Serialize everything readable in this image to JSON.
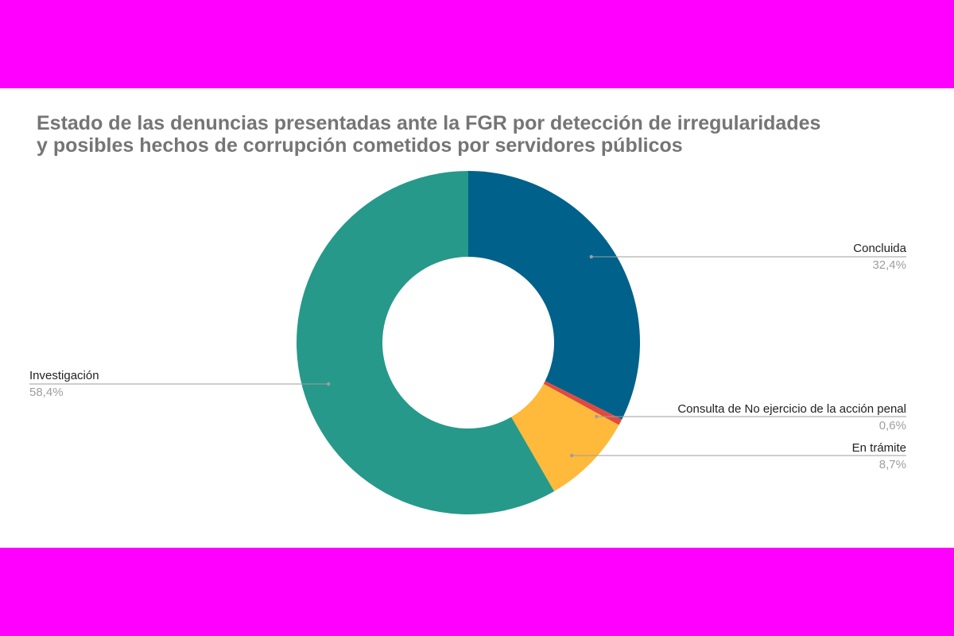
{
  "chart_data": {
    "type": "pie",
    "donut": true,
    "title_lines": [
      "Estado de las denuncias presentadas ante la FGR por detección de irregularidades",
      "y posibles hechos de corrupción cometidos por servidores públicos"
    ],
    "slices": [
      {
        "label": "Concluida",
        "value": 32.4,
        "value_label": "32,4%",
        "color": "#00618b"
      },
      {
        "label": "Consulta de No ejercicio de la acción penal",
        "value": 0.6,
        "value_label": "0,6%",
        "color": "#e04a3f"
      },
      {
        "label": "En trámite",
        "value": 8.7,
        "value_label": "8,7%",
        "color": "#ffb93b"
      },
      {
        "label": "Investigación",
        "value": 58.4,
        "value_label": "58,4%",
        "color": "#26998a"
      }
    ],
    "start_angle": "12 o'clock",
    "direction": "clockwise",
    "legend": "none (leader-line labels)"
  },
  "colors": {
    "outer_band": "#ff00ff",
    "panel_background": "#ffffff",
    "title": "#757575",
    "leader_line": "#9e9e9e"
  }
}
